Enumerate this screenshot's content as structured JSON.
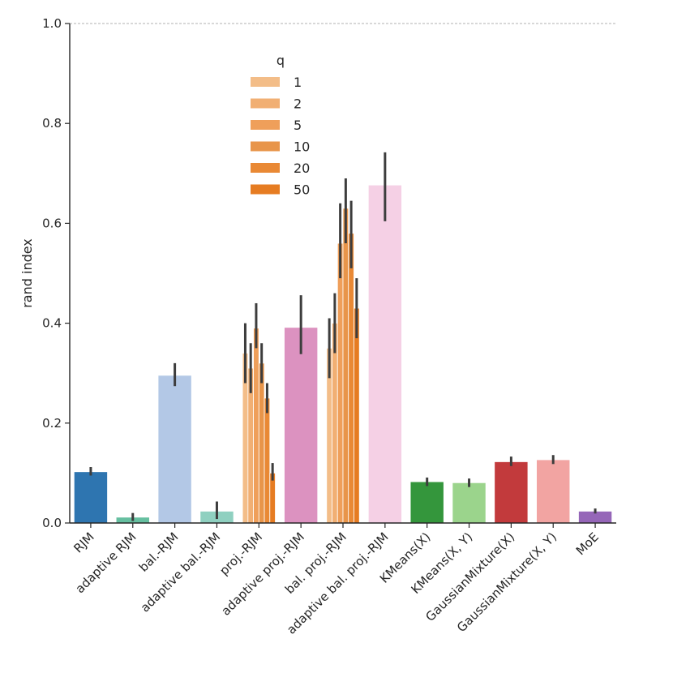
{
  "chart_data": {
    "type": "bar",
    "title": "",
    "xlabel": "",
    "ylabel": "rand index",
    "ylim": [
      0,
      1.0
    ],
    "yticks": [
      "0.0",
      "0.2",
      "0.4",
      "0.6",
      "0.8",
      "1.0"
    ],
    "reference_line": {
      "y": 1.0,
      "style": "dashed",
      "color": "#b0b0b0"
    },
    "categories": [
      "RJM",
      "adaptive RJM",
      "bal.-RJM",
      "adaptive bal.-RJM",
      "proj.-RJM",
      "adaptive proj.-RJM",
      "bal. proj.-RJM",
      "adaptive bal. proj.-RJM",
      "KMeans(X)",
      "KMeans(X, Y)",
      "GaussianMixture(X)",
      "GaussianMixture(X, Y)",
      "MoE"
    ],
    "single_bars": [
      {
        "category": "RJM",
        "value": 0.102,
        "err": [
          0.095,
          0.112
        ],
        "color": "#2e75b0"
      },
      {
        "category": "adaptive RJM",
        "value": 0.011,
        "err": [
          0.004,
          0.02
        ],
        "color": "#66bfa0"
      },
      {
        "category": "bal.-RJM",
        "value": 0.295,
        "err": [
          0.274,
          0.32
        ],
        "color": "#b3c8e6"
      },
      {
        "category": "adaptive bal.-RJM",
        "value": 0.023,
        "err": [
          0.008,
          0.043
        ],
        "color": "#8fd0c0"
      },
      {
        "category": "adaptive proj.-RJM",
        "value": 0.391,
        "err": [
          0.338,
          0.456
        ],
        "color": "#dc92c0"
      },
      {
        "category": "adaptive bal. proj.-RJM",
        "value": 0.676,
        "err": [
          0.604,
          0.742
        ],
        "color": "#f5d0e5"
      },
      {
        "category": "KMeans(X)",
        "value": 0.082,
        "err": [
          0.074,
          0.091
        ],
        "color": "#34963c"
      },
      {
        "category": "KMeans(X, Y)",
        "value": 0.08,
        "err": [
          0.072,
          0.089
        ],
        "color": "#9bd48c"
      },
      {
        "category": "GaussianMixture(X)",
        "value": 0.122,
        "err": [
          0.114,
          0.133
        ],
        "color": "#c23a3c"
      },
      {
        "category": "GaussianMixture(X, Y)",
        "value": 0.126,
        "err": [
          0.118,
          0.136
        ],
        "color": "#f2a4a2"
      },
      {
        "category": "MoE",
        "value": 0.023,
        "err": [
          0.019,
          0.029
        ],
        "color": "#9566b8"
      }
    ],
    "grouped_bars": {
      "legend_title": "q",
      "legend_position": "upper-center",
      "series": [
        {
          "name": "1",
          "color": "#f3bd88"
        },
        {
          "name": "2",
          "color": "#f1af73"
        },
        {
          "name": "5",
          "color": "#ef9f5a"
        },
        {
          "name": "10",
          "color": "#e8954a"
        },
        {
          "name": "20",
          "color": "#e98935"
        },
        {
          "name": "50",
          "color": "#e67c22"
        }
      ],
      "groups": [
        {
          "category": "proj.-RJM",
          "values": [
            0.34,
            0.31,
            0.39,
            0.32,
            0.25,
            0.1
          ],
          "err": [
            [
              0.28,
              0.4
            ],
            [
              0.26,
              0.36
            ],
            [
              0.35,
              0.44
            ],
            [
              0.28,
              0.36
            ],
            [
              0.22,
              0.28
            ],
            [
              0.085,
              0.12
            ]
          ]
        },
        {
          "category": "bal. proj.-RJM",
          "values": [
            0.35,
            0.4,
            0.56,
            0.63,
            0.58,
            0.43
          ],
          "err": [
            [
              0.29,
              0.41
            ],
            [
              0.34,
              0.46
            ],
            [
              0.49,
              0.64
            ],
            [
              0.56,
              0.69
            ],
            [
              0.51,
              0.645
            ],
            [
              0.37,
              0.49
            ]
          ]
        }
      ]
    }
  }
}
